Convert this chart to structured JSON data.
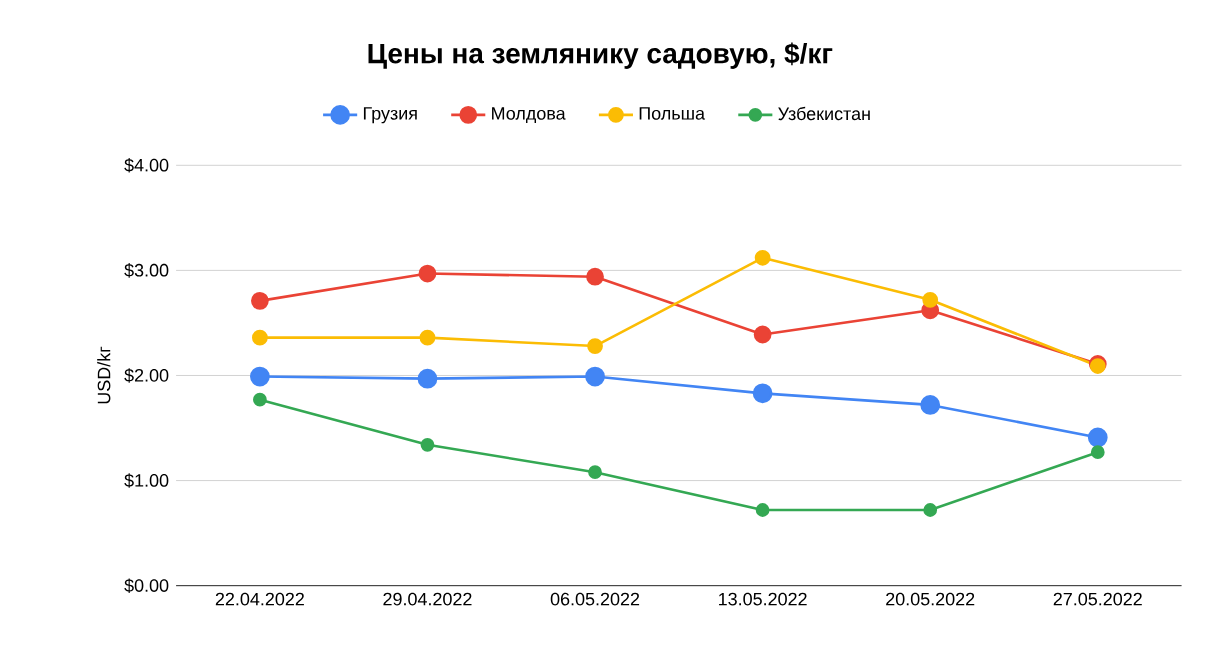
{
  "chart_data": {
    "type": "line",
    "title": "Цены на землянику садовую, $/кг",
    "ylabel": "USD/kг",
    "categories": [
      "22.04.2022",
      "29.04.2022",
      "06.05.2022",
      "13.05.2022",
      "20.05.2022",
      "27.05.2022"
    ],
    "series": [
      {
        "name": "Грузия",
        "color": "#4285f4",
        "values": [
          1.99,
          1.97,
          1.99,
          1.83,
          1.72,
          1.41
        ]
      },
      {
        "name": "Молдова",
        "color": "#ea4335",
        "values": [
          2.71,
          2.97,
          2.94,
          2.39,
          2.62,
          2.11
        ]
      },
      {
        "name": "Польша",
        "color": "#fbbc04",
        "values": [
          2.36,
          2.36,
          2.28,
          3.12,
          2.72,
          2.09
        ]
      },
      {
        "name": "Узбекистан",
        "color": "#34a853",
        "values": [
          1.77,
          1.34,
          1.08,
          0.72,
          0.72,
          1.27
        ]
      }
    ],
    "ylim": [
      0,
      4
    ],
    "yticks": [
      {
        "value": 0,
        "label": "$0.00"
      },
      {
        "value": 1,
        "label": "$1.00"
      },
      {
        "value": 2,
        "label": "$2.00"
      },
      {
        "value": 3,
        "label": "$3.00"
      },
      {
        "value": 4,
        "label": "$4.00"
      }
    ],
    "grid": "y",
    "legend": "top",
    "marker": "circle",
    "line_style": "solid"
  }
}
